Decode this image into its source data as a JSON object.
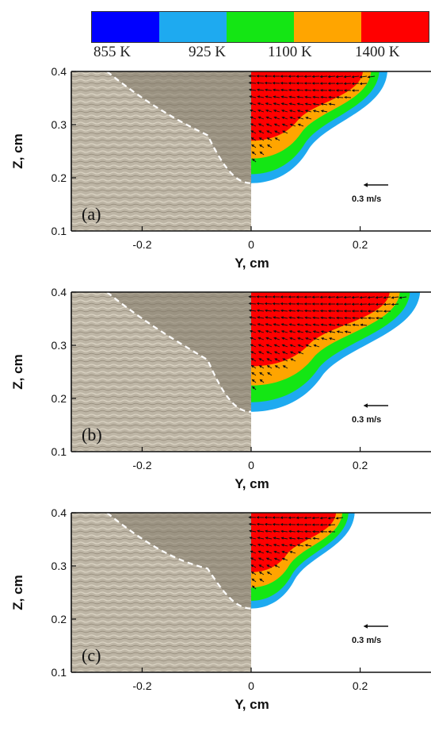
{
  "colorbar": {
    "colors": [
      "#0000ff",
      "#1eaaf0",
      "#14e614",
      "#ffa500",
      "#ff0000"
    ],
    "labels": [
      "855 K",
      "925 K",
      "1100 K",
      "1400 K"
    ]
  },
  "velocity_scale_label": "0.3 m/s",
  "chart_data": [
    {
      "type": "contour",
      "panel_label": "(a)",
      "xlabel": "Y, cm",
      "ylabel": "Z, cm",
      "xlim": [
        -0.33,
        0.33
      ],
      "ylim": [
        0.1,
        0.4
      ],
      "xticks": [
        "-0.2",
        "0",
        "0.2"
      ],
      "yticks": [
        "0.1",
        "0.2",
        "0.3",
        "0.4"
      ],
      "pool_depth_z": 0.19,
      "pool_half_width_y": 0.25,
      "isotherm_levels_K": [
        855,
        925,
        1100,
        1400
      ],
      "velocity_scale": "0.3 m/s"
    },
    {
      "type": "contour",
      "panel_label": "(b)",
      "xlabel": "Y, cm",
      "ylabel": "Z, cm",
      "xlim": [
        -0.33,
        0.33
      ],
      "ylim": [
        0.1,
        0.4
      ],
      "xticks": [
        "-0.2",
        "0",
        "0.2"
      ],
      "yticks": [
        "0.1",
        "0.2",
        "0.3",
        "0.4"
      ],
      "pool_depth_z": 0.175,
      "pool_half_width_y": 0.31,
      "isotherm_levels_K": [
        855,
        925,
        1100,
        1400
      ],
      "velocity_scale": "0.3 m/s"
    },
    {
      "type": "contour",
      "panel_label": "(c)",
      "xlabel": "Y, cm",
      "ylabel": "Z, cm",
      "xlim": [
        -0.33,
        0.33
      ],
      "ylim": [
        0.1,
        0.4
      ],
      "xticks": [
        "-0.2",
        "0",
        "0.2"
      ],
      "yticks": [
        "0.1",
        "0.2",
        "0.3",
        "0.4"
      ],
      "pool_depth_z": 0.22,
      "pool_half_width_y": 0.19,
      "isotherm_levels_K": [
        855,
        925,
        1100,
        1400
      ],
      "velocity_scale": "0.3 m/s"
    }
  ]
}
